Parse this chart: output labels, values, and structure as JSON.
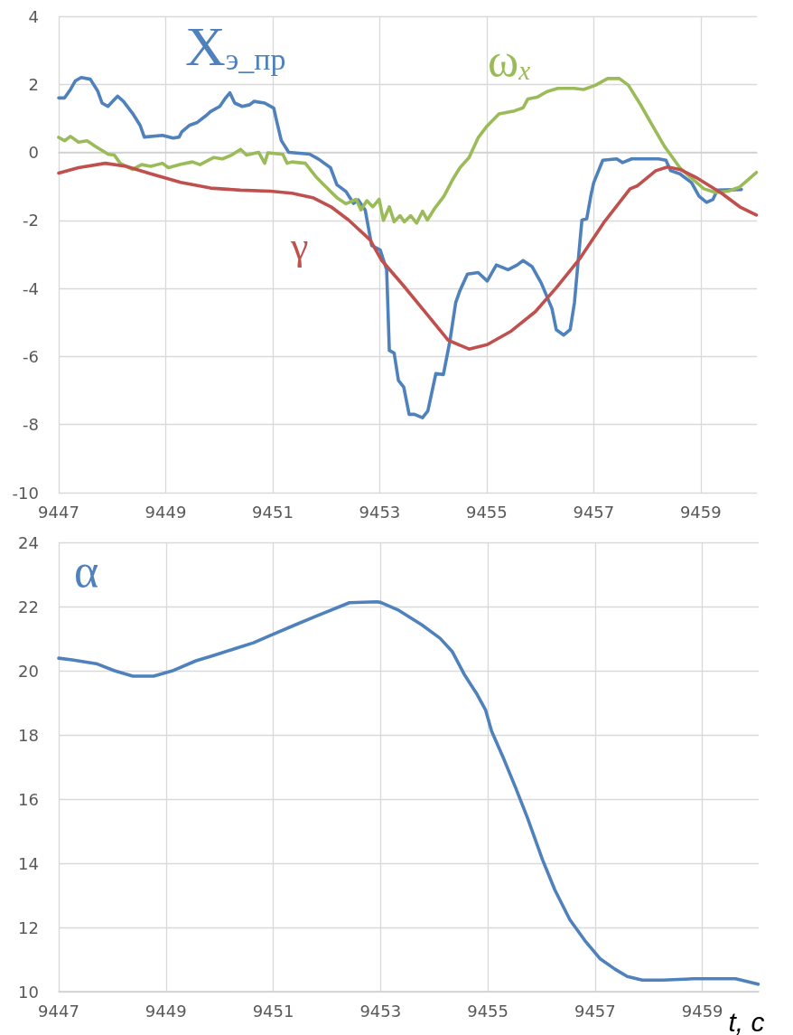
{
  "chart_data": [
    {
      "type": "line",
      "xlim": [
        9447,
        9460.05
      ],
      "xticks": [
        9447,
        9449,
        9451,
        9453,
        9455,
        9457,
        9459
      ],
      "ylim": [
        -10,
        4
      ],
      "yticks": [
        -10,
        -8,
        -6,
        -4,
        -2,
        0,
        2,
        4
      ],
      "grid": true,
      "marker": "none",
      "line_style": "solid",
      "series": [
        {
          "name": "X$_{э_пр}$",
          "color": "#4f81bd",
          "x": [
            9447,
            9447.11,
            9447.22,
            9447.31,
            9447.42,
            9447.59,
            9447.73,
            9447.81,
            9447.92,
            9448.01,
            9448.1,
            9448.21,
            9448.38,
            9448.52,
            9448.6,
            9448.94,
            9449.14,
            9449.25,
            9449.3,
            9449.45,
            9449.59,
            9449.73,
            9449.84,
            9450.01,
            9450.12,
            9450.2,
            9450.29,
            9450.43,
            9450.57,
            9450.65,
            9450.85,
            9451.02,
            9451.07,
            9451.16,
            9451.3,
            9451.69,
            9451.86,
            9452.08,
            9452.2,
            9452.37,
            9452.51,
            9452.6,
            9452.73,
            9452.85,
            9453.01,
            9453.13,
            9453.18,
            9453.27,
            9453.35,
            9453.45,
            9453.55,
            9453.65,
            9453.8,
            9453.9,
            9454.05,
            9454.19,
            9454.31,
            9454.42,
            9454.5,
            9454.64,
            9454.84,
            9455.01,
            9455.18,
            9455.4,
            9455.57,
            9455.68,
            9455.85,
            9456.02,
            9456.22,
            9456.3,
            9456.44,
            9456.56,
            9456.64,
            9456.7,
            9456.78,
            9456.87,
            9456.95,
            9457,
            9457.17,
            9457.43,
            9457.54,
            9457.71,
            9458.21,
            9458.35,
            9458.44,
            9458.61,
            9458.83,
            9458.97,
            9459.11,
            9459.23,
            9459.31,
            9459.76
          ],
          "values": [
            1.6,
            1.6,
            1.85,
            2.1,
            2.2,
            2.15,
            1.8,
            1.45,
            1.35,
            1.5,
            1.65,
            1.5,
            1.15,
            0.8,
            0.45,
            0.5,
            0.42,
            0.45,
            0.6,
            0.8,
            0.88,
            1.05,
            1.2,
            1.35,
            1.6,
            1.75,
            1.45,
            1.35,
            1.4,
            1.5,
            1.45,
            1.3,
            0.95,
            0.35,
            0,
            -0.05,
            -0.2,
            -0.45,
            -0.95,
            -1.15,
            -1.5,
            -1.4,
            -1.7,
            -2.74,
            -2.87,
            -3.45,
            -5.82,
            -5.9,
            -6.7,
            -6.9,
            -7.7,
            -7.7,
            -7.8,
            -7.6,
            -6.5,
            -6.53,
            -5.56,
            -4.42,
            -4.06,
            -3.58,
            -3.53,
            -3.78,
            -3.31,
            -3.45,
            -3.31,
            -3.18,
            -3.36,
            -3.84,
            -4.59,
            -5.21,
            -5.37,
            -5.21,
            -4.42,
            -3.36,
            -1.99,
            -1.95,
            -1.25,
            -0.89,
            -0.23,
            -0.19,
            -0.3,
            -0.19,
            -0.19,
            -0.23,
            -0.54,
            -0.63,
            -0.89,
            -1.29,
            -1.47,
            -1.38,
            -1.11,
            -1.09
          ]
        },
        {
          "name": "ω$_{x}$",
          "color": "#9bbb59",
          "x": [
            9447,
            9447.11,
            9447.22,
            9447.37,
            9447.53,
            9447.7,
            9447.93,
            9448.04,
            9448.15,
            9448.38,
            9448.55,
            9448.72,
            9448.94,
            9449.05,
            9449.28,
            9449.5,
            9449.64,
            9449.9,
            9450.06,
            9450.23,
            9450.4,
            9450.51,
            9450.74,
            9450.85,
            9450.91,
            9451.19,
            9451.27,
            9451.36,
            9451.61,
            9451.81,
            9452.03,
            9452.2,
            9452.37,
            9452.56,
            9452.65,
            9452.76,
            9452.87,
            9452.99,
            9453.07,
            9453.18,
            9453.27,
            9453.38,
            9453.46,
            9453.58,
            9453.69,
            9453.8,
            9453.89,
            9454.03,
            9454.2,
            9454.36,
            9454.5,
            9454.67,
            9454.84,
            9455.01,
            9455.23,
            9455.52,
            9455.68,
            9455.77,
            9455.94,
            9456.13,
            9456.33,
            9456.64,
            9456.81,
            9457.03,
            9457.26,
            9457.48,
            9457.65,
            9457.88,
            9458.1,
            9458.33,
            9458.61,
            9458.83,
            9459.06,
            9459.28,
            9459.51,
            9459.73,
            9460.04
          ],
          "values": [
            0.44,
            0.34,
            0.47,
            0.3,
            0.34,
            0.16,
            -0.06,
            -0.08,
            -0.32,
            -0.5,
            -0.36,
            -0.41,
            -0.32,
            -0.45,
            -0.35,
            -0.28,
            -0.36,
            -0.15,
            -0.19,
            -0.08,
            0.09,
            -0.08,
            0,
            -0.32,
            -0.01,
            -0.06,
            -0.32,
            -0.28,
            -0.32,
            -0.72,
            -1.07,
            -1.33,
            -1.51,
            -1.38,
            -1.69,
            -1.42,
            -1.6,
            -1.38,
            -2,
            -1.6,
            -2.04,
            -1.86,
            -2.04,
            -1.86,
            -2.08,
            -1.73,
            -1.99,
            -1.64,
            -1.29,
            -0.81,
            -0.45,
            -0.15,
            0.43,
            0.78,
            1.13,
            1.22,
            1.31,
            1.57,
            1.62,
            1.79,
            1.88,
            1.88,
            1.85,
            1.97,
            2.17,
            2.17,
            1.97,
            1.39,
            0.78,
            0.16,
            -0.45,
            -0.76,
            -1.07,
            -1.18,
            -1.14,
            -1.02,
            -0.59
          ]
        },
        {
          "name": "γ",
          "color": "#c0504d",
          "x": [
            9447,
            9447.37,
            9447.87,
            9448.26,
            9448.72,
            9449.28,
            9449.84,
            9450.4,
            9450.96,
            9451.36,
            9451.75,
            9452.09,
            9452.42,
            9452.82,
            9453.04,
            9453.43,
            9453.89,
            9454.28,
            9454.67,
            9455.01,
            9455.46,
            9455.91,
            9456.3,
            9456.75,
            9457.2,
            9457.68,
            9457.82,
            9458.16,
            9458.38,
            9458.61,
            9458.94,
            9459.39,
            9459.73,
            9460.04
          ],
          "values": [
            -0.61,
            -0.45,
            -0.32,
            -0.41,
            -0.63,
            -0.88,
            -1.05,
            -1.11,
            -1.14,
            -1.2,
            -1.33,
            -1.6,
            -1.99,
            -2.57,
            -3.18,
            -3.89,
            -4.77,
            -5.52,
            -5.78,
            -5.65,
            -5.25,
            -4.68,
            -3.98,
            -3.1,
            -2.04,
            -1.07,
            -0.98,
            -0.54,
            -0.43,
            -0.5,
            -0.76,
            -1.2,
            -1.6,
            -1.84
          ]
        }
      ]
    },
    {
      "type": "line",
      "xlabel": "t, c",
      "xlim": [
        9447,
        9460.05
      ],
      "xticks": [
        9447,
        9449,
        9451,
        9453,
        9455,
        9457,
        9459
      ],
      "ylim": [
        10,
        24
      ],
      "yticks": [
        10,
        12,
        14,
        16,
        18,
        20,
        22,
        24
      ],
      "grid": true,
      "marker": "none",
      "line_style": "solid",
      "series": [
        {
          "name": "α",
          "color": "#4f81bd",
          "x": [
            9447,
            9447.25,
            9447.7,
            9448.04,
            9448.38,
            9448.77,
            9449.11,
            9449.56,
            9449.84,
            9450.29,
            9450.63,
            9450.96,
            9451.41,
            9451.81,
            9452.42,
            9452.93,
            9453.0,
            9453.32,
            9453.77,
            9454.11,
            9454.34,
            9454.56,
            9454.79,
            9454.96,
            9455.07,
            9455.29,
            9455.52,
            9455.74,
            9456.02,
            9456.25,
            9456.53,
            9456.81,
            9457.09,
            9457.37,
            9457.6,
            9457.88,
            9458.27,
            9458.83,
            9459.62,
            9460.04
          ],
          "values": [
            20.39,
            20.34,
            20.22,
            20.0,
            19.83,
            19.83,
            19.99,
            20.31,
            20.45,
            20.69,
            20.87,
            21.11,
            21.43,
            21.71,
            22.12,
            22.15,
            22.13,
            21.9,
            21.43,
            21.01,
            20.59,
            19.89,
            19.29,
            18.77,
            18.12,
            17.28,
            16.35,
            15.41,
            14.11,
            13.17,
            12.24,
            11.59,
            11.03,
            10.7,
            10.47,
            10.36,
            10.36,
            10.4,
            10.4,
            10.23
          ]
        }
      ]
    }
  ]
}
